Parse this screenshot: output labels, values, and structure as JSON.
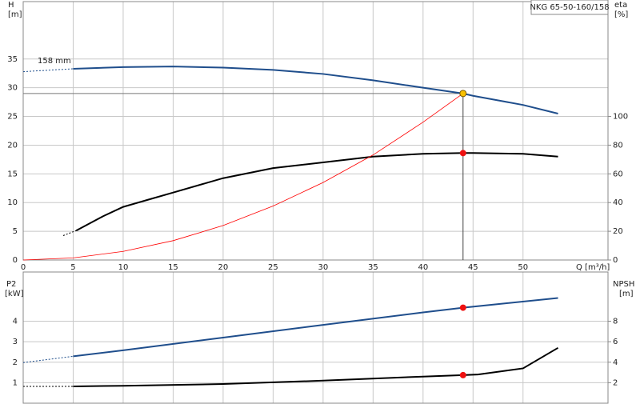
{
  "chart_data": [
    {
      "type": "line",
      "title": "NKG 65-50-160/158",
      "annotation": "158 mm",
      "y_label": "H",
      "y_unit": "[m]",
      "y2_label": "eta",
      "y2_unit": "[%]",
      "x_label": "Q [m³/h]",
      "xlim": [
        0,
        58.5
      ],
      "xticks": [
        0,
        5,
        10,
        15,
        20,
        25,
        30,
        35,
        40,
        45,
        50
      ],
      "ylim": [
        0,
        45
      ],
      "yticks": [
        0,
        5,
        10,
        15,
        20,
        25,
        30,
        35
      ],
      "y2lim": [
        0,
        180
      ],
      "y2ticks": [
        0,
        20,
        40,
        60,
        80,
        100
      ],
      "grid": true,
      "show_xtick_labels": true,
      "duty_point": {
        "x": 44,
        "y": 29
      },
      "series": [
        {
          "color": "#1f4e8c",
          "dash": true,
          "width": 1,
          "x": [
            0,
            5
          ],
          "values": [
            32.8,
            33.3
          ]
        },
        {
          "color": "#1f4e8c",
          "dash": false,
          "width": 2,
          "x": [
            5,
            10,
            15,
            20,
            25,
            30,
            35,
            40,
            44,
            45,
            50,
            53.5
          ],
          "values": [
            33.3,
            33.6,
            33.7,
            33.5,
            33.1,
            32.4,
            31.3,
            30.0,
            29.0,
            28.6,
            27.0,
            25.5
          ]
        },
        {
          "color": "#000000",
          "dash": true,
          "width": 1,
          "axis": "y2",
          "x": [
            4,
            5.3
          ],
          "values": [
            17,
            20.5
          ]
        },
        {
          "color": "#000000",
          "dash": false,
          "width": 2,
          "axis": "y2",
          "x": [
            5.3,
            8,
            10,
            12.5,
            15,
            20,
            25,
            30,
            35,
            40,
            44,
            45,
            50,
            53.5
          ],
          "values": [
            20.5,
            30.5,
            37,
            42,
            47,
            57,
            64,
            68,
            72,
            74,
            74.5,
            74.5,
            74,
            72
          ]
        },
        {
          "color": "#ff0000",
          "dash": false,
          "width": 0.8,
          "x": [
            0,
            5,
            10,
            15,
            20,
            25,
            30,
            35,
            40,
            44
          ],
          "values": [
            0,
            0.37,
            1.5,
            3.37,
            6,
            9.4,
            13.5,
            18.3,
            24,
            29
          ]
        },
        {
          "color": "#f7c000",
          "marker": true,
          "x": [
            44
          ],
          "values": [
            29
          ]
        },
        {
          "color": "#ee1111",
          "marker": true,
          "axis": "y2",
          "x": [
            44
          ],
          "values": [
            74.5
          ]
        }
      ]
    },
    {
      "type": "line",
      "y_label": "P2",
      "y_unit": "[kW]",
      "y2_label": "NPSH",
      "y2_unit": "[m]",
      "xlim": [
        0,
        58.5
      ],
      "xticks": [
        0,
        5,
        10,
        15,
        20,
        25,
        30,
        35,
        40,
        45,
        50
      ],
      "ylim": [
        0,
        6.4
      ],
      "yticks": [
        1,
        2,
        3,
        4
      ],
      "y2lim": [
        0,
        12.8
      ],
      "y2ticks": [
        2,
        4,
        6,
        8
      ],
      "grid": true,
      "show_xtick_labels": false,
      "series": [
        {
          "color": "#1f4e8c",
          "dash": true,
          "width": 1,
          "x": [
            0,
            5
          ],
          "values": [
            1.98,
            2.29
          ]
        },
        {
          "color": "#1f4e8c",
          "dash": false,
          "width": 2,
          "x": [
            5,
            10,
            20,
            30,
            40,
            44,
            53.5
          ],
          "values": [
            2.29,
            2.58,
            3.2,
            3.82,
            4.43,
            4.66,
            5.13
          ]
        },
        {
          "color": "#000000",
          "dash": true,
          "width": 1,
          "axis": "y2",
          "x": [
            0,
            5
          ],
          "values": [
            1.64,
            1.64
          ]
        },
        {
          "color": "#000000",
          "dash": false,
          "width": 2,
          "axis": "y2",
          "x": [
            5,
            10,
            20,
            30,
            40,
            44,
            45.5,
            50,
            53.5
          ],
          "values": [
            1.64,
            1.7,
            1.87,
            2.2,
            2.6,
            2.74,
            2.8,
            3.4,
            5.4
          ]
        },
        {
          "color": "#ee1111",
          "marker": true,
          "x": [
            44
          ],
          "values": [
            4.66
          ]
        },
        {
          "color": "#ee1111",
          "marker": true,
          "axis": "y2",
          "x": [
            44
          ],
          "values": [
            2.74
          ]
        }
      ]
    }
  ]
}
